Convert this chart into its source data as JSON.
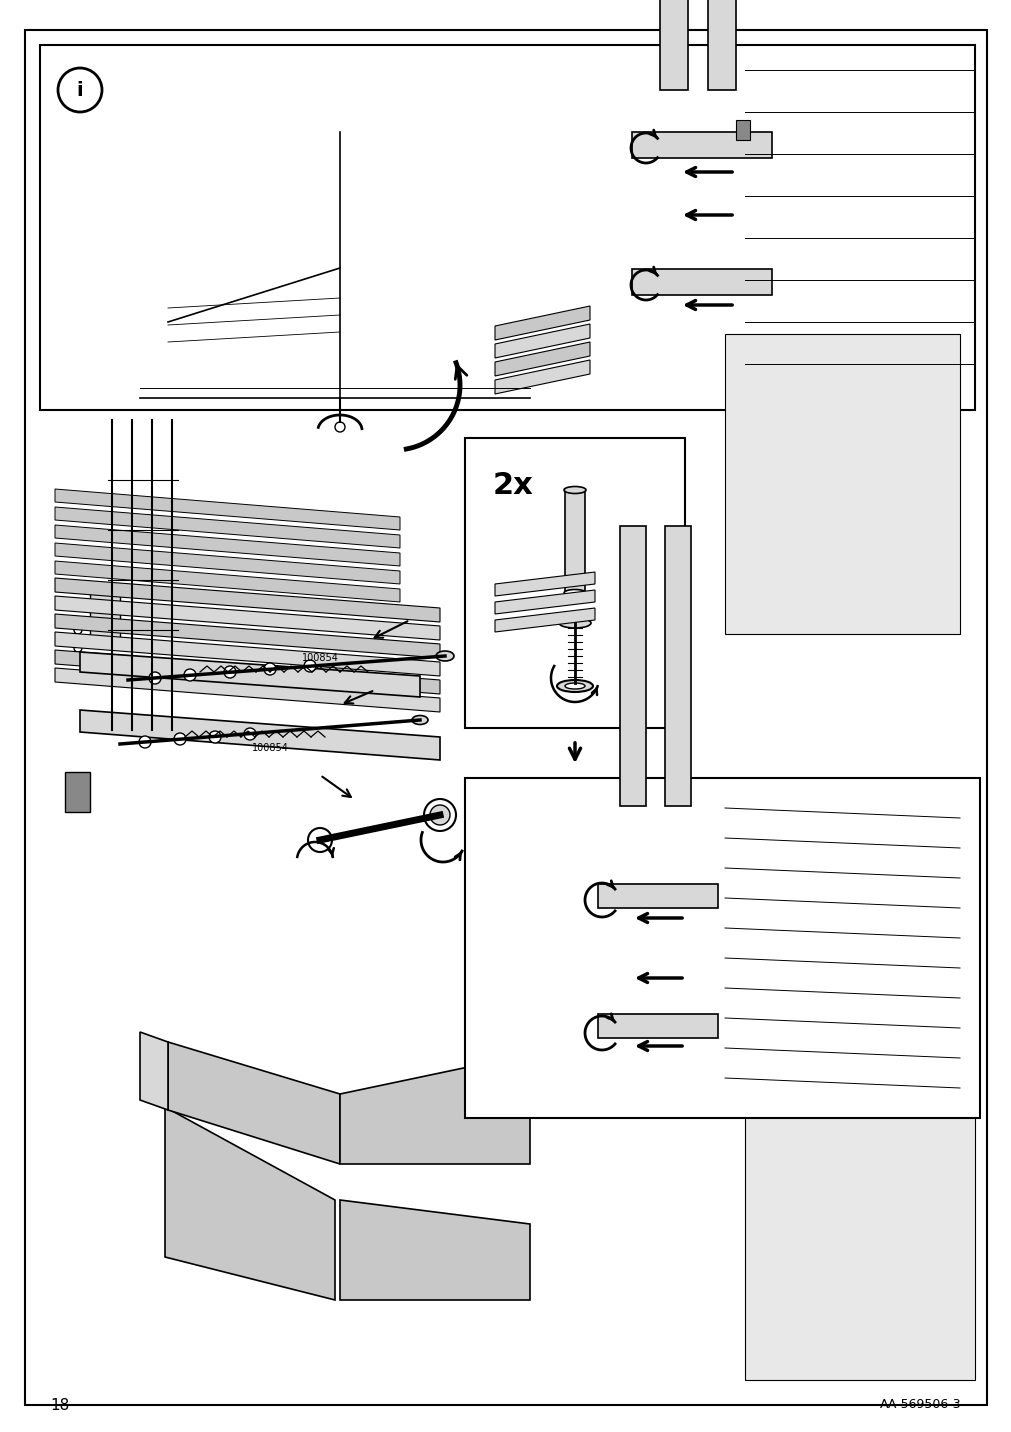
{
  "page_number": "18",
  "reference_code": "AA-569506-3",
  "background_color": "#ffffff",
  "border_color": "#000000",
  "line_color": "#000000",
  "gray_fill": "#c8c8c8",
  "light_gray": "#d8d8d8",
  "dark_gray": "#888888",
  "part_label_1": "100854",
  "part_label_2": "100854",
  "quantity_label": "2x"
}
